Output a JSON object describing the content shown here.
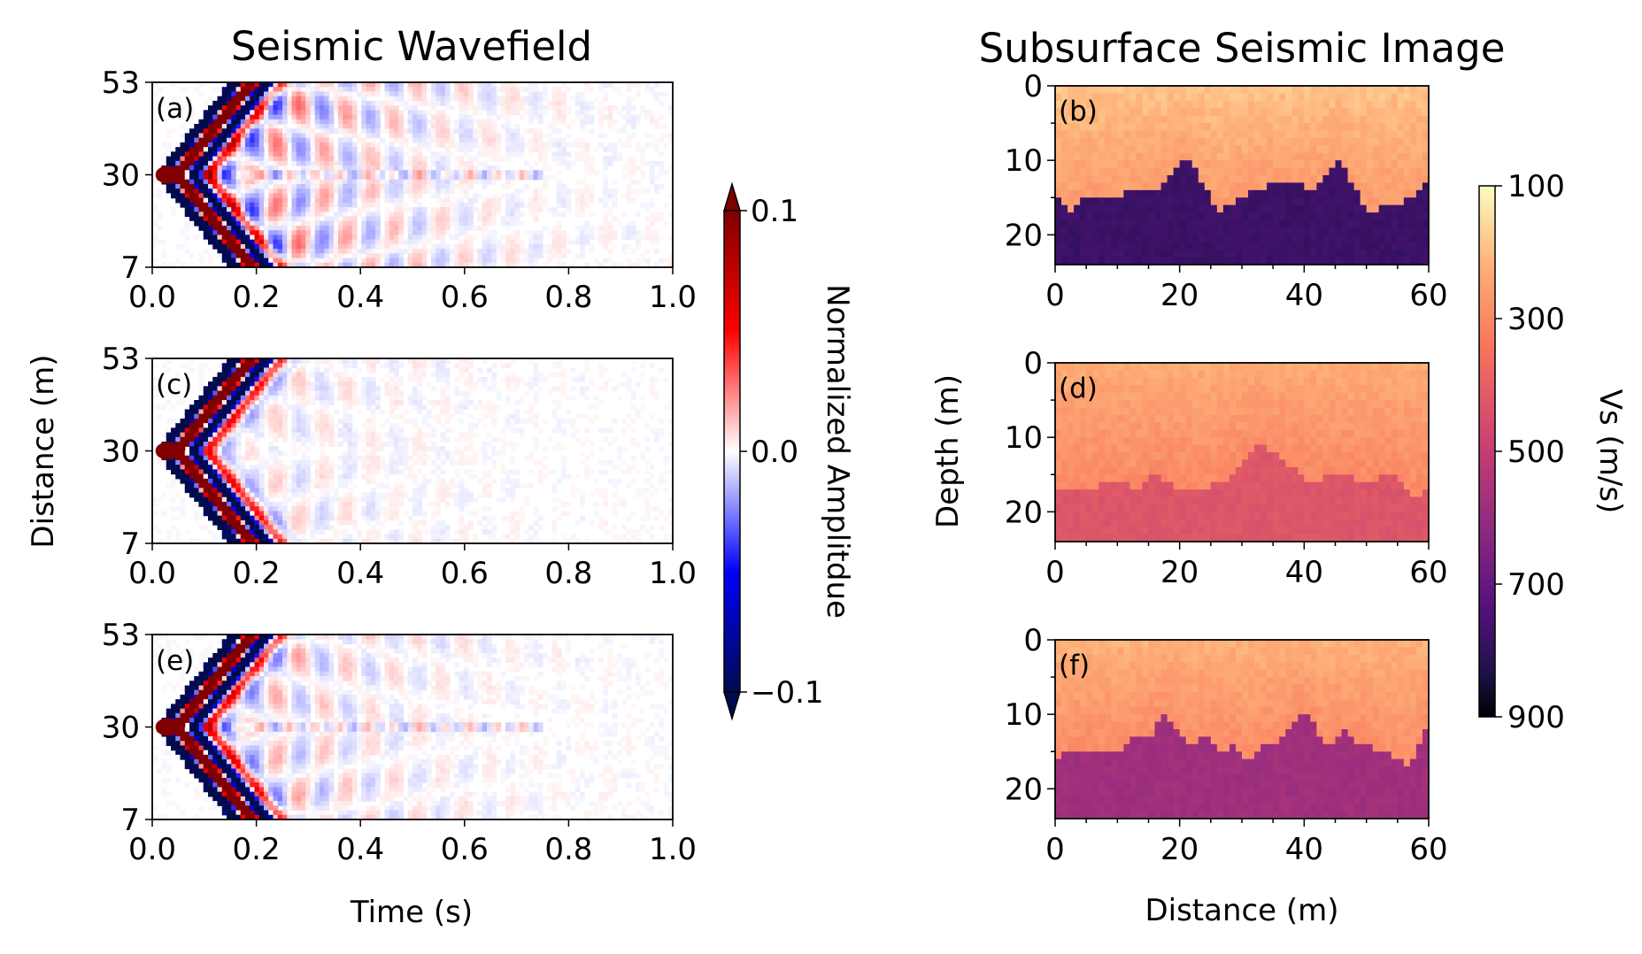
{
  "chart_data": [
    {
      "type": "heatmap",
      "title": "Seismic Wavefield",
      "xlabel": "Time (s)",
      "ylabel": "Distance (m)",
      "xlim": [
        0.0,
        1.0
      ],
      "ylim": [
        7,
        53
      ],
      "x_ticks": [
        "0.0",
        "0.2",
        "0.4",
        "0.6",
        "0.8",
        "1.0"
      ],
      "y_ticks": [
        "53",
        "30",
        "7"
      ],
      "source_distance": 30,
      "panels": [
        {
          "label": "(a)",
          "tail_strength": 1.0,
          "center_line": true
        },
        {
          "label": "(c)",
          "tail_strength": 0.35,
          "center_line": false
        },
        {
          "label": "(e)",
          "tail_strength": 0.6,
          "center_line": true
        }
      ],
      "colorbar": {
        "label": "Normalized Amplitdue",
        "colormap": "seismic",
        "range": [
          -0.1,
          0.1
        ],
        "ticks": [
          "0.1",
          "0.0",
          "−0.1"
        ],
        "extend": "both"
      }
    },
    {
      "type": "heatmap",
      "title": "Subsurface Seismic Image",
      "xlabel": "Distance (m)",
      "ylabel": "Depth (m)",
      "xlim": [
        0,
        60
      ],
      "ylim": [
        24,
        0
      ],
      "x_ticks": [
        "0",
        "20",
        "40",
        "60"
      ],
      "y_ticks": [
        "0",
        "10",
        "20"
      ],
      "panels": [
        {
          "label": "(b)",
          "top_vs": 260,
          "bottom_vs": 780,
          "interface_x": [
            0,
            2,
            5,
            10,
            13,
            16,
            19,
            21,
            23,
            26,
            30,
            35,
            39,
            41,
            43,
            45,
            47,
            50,
            55,
            58,
            60
          ],
          "interface_depth": [
            15,
            17,
            15,
            15,
            14,
            14,
            12,
            10,
            12,
            17,
            15,
            13,
            13,
            14,
            13,
            10,
            12,
            17,
            16,
            15,
            12
          ]
        },
        {
          "label": "(d)",
          "top_vs": 300,
          "bottom_vs": 430,
          "interface_x": [
            0,
            5,
            10,
            13,
            16,
            18,
            20,
            23,
            27,
            30,
            33,
            35,
            38,
            41,
            45,
            50,
            54,
            56,
            58,
            60
          ],
          "interface_depth": [
            17,
            17,
            16,
            17,
            15,
            16,
            17,
            17,
            16,
            14,
            11,
            12,
            14,
            16,
            15,
            16,
            15,
            17,
            18,
            17
          ]
        },
        {
          "label": "(f)",
          "top_vs": 290,
          "bottom_vs": 580,
          "interface_x": [
            0,
            2,
            5,
            10,
            13,
            16,
            17,
            19,
            22,
            24,
            27,
            29,
            31,
            33,
            36,
            38,
            40,
            42,
            44,
            46,
            49,
            52,
            55,
            57,
            60
          ],
          "interface_depth": [
            16,
            15,
            15,
            15,
            13,
            13,
            10,
            11,
            15,
            13,
            15,
            14,
            17,
            14,
            14,
            12,
            10,
            12,
            15,
            12,
            14,
            15,
            16,
            17,
            11
          ]
        }
      ],
      "colorbar": {
        "label": "Vs (m/s)",
        "colormap": "magma_r",
        "range": [
          100,
          900
        ],
        "ticks": [
          "100",
          "300",
          "500",
          "700",
          "900"
        ]
      }
    }
  ]
}
